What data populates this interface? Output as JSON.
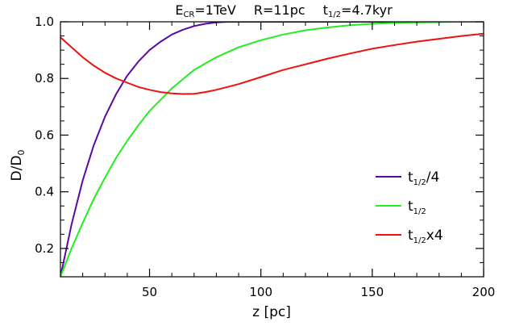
{
  "chart_data": {
    "type": "line",
    "title": {
      "e_main": "E",
      "e_sub": "CR",
      "e_rest": "=1TeV",
      "radius": "R=11pc",
      "t_main": "t",
      "t_sub": "1/2",
      "t_rest": "=4.7kyr"
    },
    "xlabel": "z [pc]",
    "ylabel": {
      "main": "D/D",
      "sub": "0"
    },
    "xlim": [
      10,
      200
    ],
    "ylim": [
      0.1,
      1.0
    ],
    "xticks": [
      50,
      100,
      150,
      200
    ],
    "yticks": [
      0.2,
      0.4,
      0.6,
      0.8,
      1.0
    ],
    "xtick_labels": [
      "50",
      "100",
      "150",
      "200"
    ],
    "ytick_labels": [
      "0.2",
      "0.4",
      "0.6",
      "0.8",
      "1.0"
    ],
    "grid": false,
    "legend_position": "right-bottom",
    "series": [
      {
        "legend": {
          "main": "t",
          "sub": "1/2",
          "suffix": "/4"
        },
        "color": "#5b0a9f",
        "x": [
          10,
          15,
          20,
          25,
          30,
          35,
          40,
          45,
          50,
          55,
          60,
          65,
          70,
          75,
          80,
          85,
          90,
          95,
          100,
          110,
          120,
          130,
          140,
          150,
          160,
          170,
          180,
          190,
          200
        ],
        "y": [
          0.1,
          0.285,
          0.44,
          0.565,
          0.665,
          0.745,
          0.81,
          0.86,
          0.9,
          0.93,
          0.955,
          0.972,
          0.985,
          0.993,
          0.998,
          1.0,
          1.0,
          1.0,
          1.0,
          1.0,
          1.0,
          1.0,
          1.0,
          1.0,
          1.0,
          1.0,
          1.0,
          1.0,
          1.0
        ]
      },
      {
        "legend": {
          "main": "t",
          "sub": "1/2",
          "suffix": ""
        },
        "color": "#22ee22",
        "x": [
          10,
          15,
          20,
          25,
          30,
          35,
          40,
          45,
          50,
          55,
          60,
          70,
          80,
          90,
          100,
          110,
          120,
          130,
          140,
          150,
          160,
          170,
          180,
          190,
          200
        ],
        "y": [
          0.1,
          0.2,
          0.29,
          0.375,
          0.45,
          0.52,
          0.58,
          0.635,
          0.685,
          0.725,
          0.765,
          0.83,
          0.875,
          0.91,
          0.935,
          0.955,
          0.97,
          0.98,
          0.988,
          0.993,
          0.996,
          0.998,
          0.999,
          1.0,
          1.0
        ]
      },
      {
        "legend": {
          "main": "t",
          "sub": "1/2",
          "suffix": "x4"
        },
        "color": "#ee1111",
        "x": [
          10,
          15,
          20,
          25,
          30,
          35,
          40,
          45,
          50,
          55,
          60,
          65,
          70,
          75,
          80,
          90,
          100,
          110,
          120,
          130,
          140,
          150,
          160,
          170,
          180,
          190,
          200
        ],
        "y": [
          0.945,
          0.91,
          0.875,
          0.845,
          0.82,
          0.8,
          0.785,
          0.77,
          0.76,
          0.752,
          0.747,
          0.745,
          0.746,
          0.752,
          0.76,
          0.78,
          0.805,
          0.83,
          0.85,
          0.87,
          0.888,
          0.905,
          0.918,
          0.93,
          0.94,
          0.95,
          0.958
        ]
      }
    ]
  }
}
